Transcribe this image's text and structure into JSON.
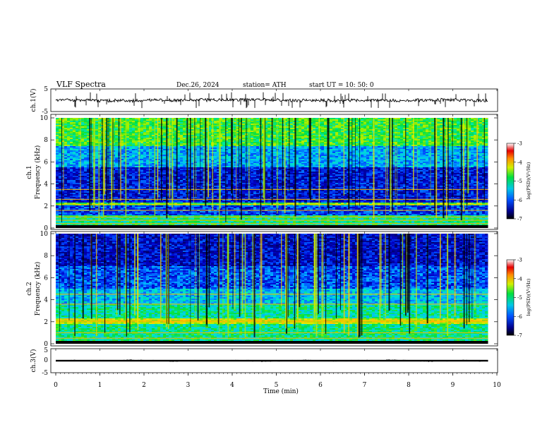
{
  "header": {
    "title": "VLF  Spectra",
    "date": "Dec.26, 2024",
    "station": "station= ATH",
    "start": "start  UT  =    10: 50: 0"
  },
  "chart_data": [
    {
      "id": "ch1-waveform",
      "type": "line",
      "ylabel": "ch.1(V)",
      "ylim": [
        -5,
        5
      ],
      "yticks": [
        "5",
        "-5"
      ],
      "xlim": [
        0,
        10
      ],
      "baseline": 0,
      "amplitude": 0.6,
      "spikes": "frequent sferics"
    },
    {
      "id": "ch1-spectrogram",
      "type": "heatmap",
      "ylabel_line1": "ch.1",
      "ylabel_line2": "Frequency  (kHz)",
      "ylim": [
        0,
        10
      ],
      "yticks": [
        "0",
        "2",
        "4",
        "6",
        "8",
        "10"
      ],
      "xlim": [
        0,
        10
      ],
      "data_end_min": 9.8,
      "colorbar": {
        "label": "log(PSD)(V²/Hz)",
        "range": [
          -7,
          -3
        ],
        "ticks": [
          "-3",
          "-4",
          "-5",
          "-6",
          "-7"
        ]
      },
      "bands": [
        {
          "from": 0,
          "to": 0.3,
          "level": "black"
        },
        {
          "from": 0.3,
          "to": 1.2,
          "level": -5.2
        },
        {
          "from": 1.2,
          "to": 2.0,
          "level": -6.3
        },
        {
          "from": 2.0,
          "to": 2.3,
          "level": -4.8
        },
        {
          "from": 2.3,
          "to": 5.5,
          "level": -6.5
        },
        {
          "from": 5.5,
          "to": 7.5,
          "level": -5.8
        },
        {
          "from": 7.5,
          "to": 10,
          "level": -4.9
        }
      ],
      "lines_khz": [
        0.4,
        0.7,
        1.0,
        1.6,
        2.15,
        2.6,
        3.5
      ]
    },
    {
      "id": "ch2-spectrogram",
      "type": "heatmap",
      "ylabel_line1": "ch.2",
      "ylabel_line2": "Frequency  (kHz)",
      "ylim": [
        0,
        10
      ],
      "yticks": [
        "0",
        "2",
        "4",
        "6",
        "8",
        "10"
      ],
      "xlim": [
        0,
        10
      ],
      "data_end_min": 9.8,
      "colorbar": {
        "label": "log(PSD)(V²/Hz)",
        "range": [
          -7,
          -3
        ],
        "ticks": [
          "-3",
          "-4",
          "-5",
          "-6",
          "-7"
        ]
      },
      "bands": [
        {
          "from": 0,
          "to": 0.3,
          "level": "black"
        },
        {
          "from": 0.3,
          "to": 1.8,
          "level": -5.2
        },
        {
          "from": 1.8,
          "to": 2.3,
          "level": -4.4
        },
        {
          "from": 2.3,
          "to": 3.6,
          "level": -5.3
        },
        {
          "from": 3.6,
          "to": 5.0,
          "level": -5.7
        },
        {
          "from": 5.0,
          "to": 7.0,
          "level": -6.2
        },
        {
          "from": 7.0,
          "to": 10,
          "level": -6.6
        }
      ],
      "lines_khz": [
        0.5,
        1.0,
        2.0,
        2.1,
        3.6,
        4.5
      ]
    },
    {
      "id": "ch3-waveform",
      "type": "line",
      "ylabel": "ch.3(V)",
      "ylim": [
        -5,
        5
      ],
      "yticks": [
        "5",
        "0",
        "-5"
      ],
      "xlim": [
        0,
        10
      ],
      "baseline": 0,
      "amplitude": 0.35,
      "xlabel": "Time  (min)",
      "xticks": [
        "0",
        "1",
        "2",
        "3",
        "4",
        "5",
        "6",
        "7",
        "8",
        "9",
        "10"
      ]
    }
  ]
}
